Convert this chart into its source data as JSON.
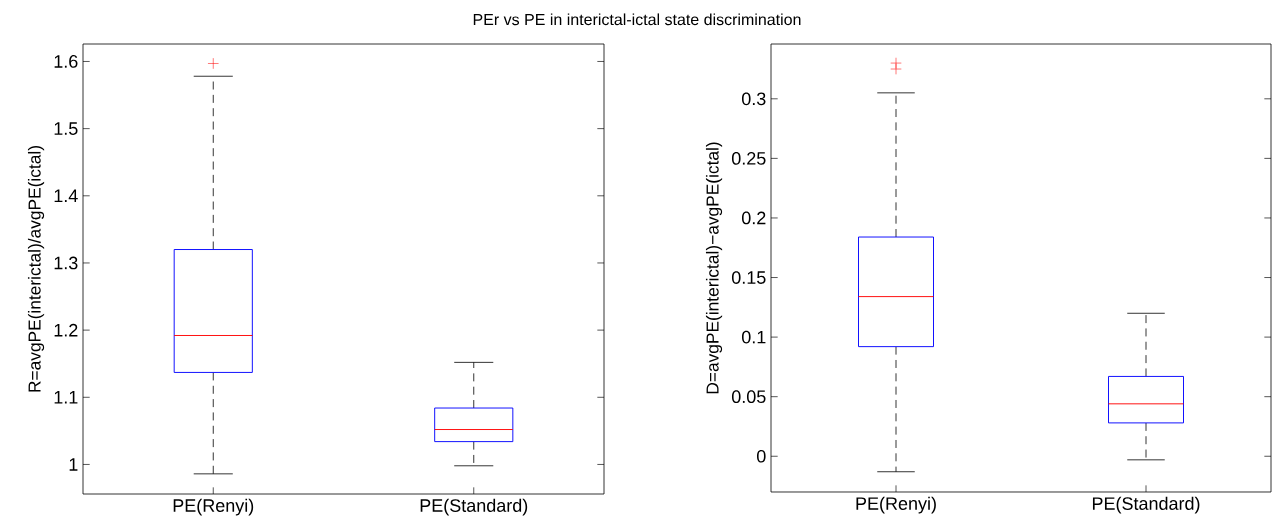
{
  "chart_data": [
    {
      "type": "box",
      "title": "PEr vs PE in interictal-ictal state discrimination",
      "ylabel": "R=avgPE(interictal)/avgPE(ictal)",
      "categories": [
        "PE(Renyi)",
        "PE(Standard)"
      ],
      "ylim": [
        0.956,
        1.626
      ],
      "yticks": [
        {
          "value": 1,
          "label": "1"
        },
        1.1,
        1.2,
        1.3,
        1.4,
        1.5,
        1.6
      ],
      "grid": false,
      "series": [
        {
          "color": "#0000ff",
          "boxes": [
            {
              "low": 0.986,
              "q1": 1.137,
              "median": 1.192,
              "q3": 1.32,
              "high": 1.578,
              "outliers": [
                1.597
              ]
            },
            {
              "low": 0.998,
              "q1": 1.034,
              "median": 1.052,
              "q3": 1.084,
              "high": 1.152
            }
          ]
        }
      ]
    },
    {
      "type": "box",
      "ylabel": "D=avgPE(interictal)−avgPE(ictal)",
      "categories": [
        "PE(Renyi)",
        "PE(Standard)"
      ],
      "ylim": [
        -0.03,
        0.346
      ],
      "yticks": [
        {
          "value": 0,
          "label": "0"
        },
        0.05,
        0.1,
        0.15,
        0.2,
        0.25,
        0.3
      ],
      "grid": false,
      "series": [
        {
          "color": "#0000ff",
          "boxes": [
            {
              "low": -0.013,
              "q1": 0.092,
              "median": 0.134,
              "q3": 0.184,
              "high": 0.305,
              "outliers": [
                0.325,
                0.33
              ]
            },
            {
              "low": -0.003,
              "q1": 0.028,
              "median": 0.044,
              "q3": 0.067,
              "high": 0.12
            }
          ]
        }
      ]
    }
  ]
}
